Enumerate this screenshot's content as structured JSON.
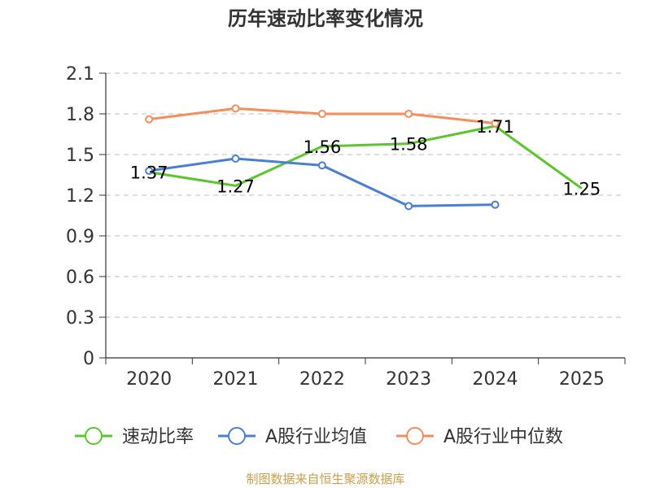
{
  "chart_data": {
    "type": "line",
    "title": "历年速动比率变化情况",
    "categories": [
      "2020",
      "2021",
      "2022",
      "2023",
      "2024",
      "2025"
    ],
    "yticks": [
      "0",
      "0.3",
      "0.6",
      "0.9",
      "1.2",
      "1.5",
      "1.8",
      "2.1"
    ],
    "ylim": [
      0,
      2.1
    ],
    "grid": true,
    "legend_position": "bottom",
    "series": [
      {
        "name": "速动比率",
        "color": "#5bc52c",
        "values": [
          1.37,
          1.27,
          1.56,
          1.58,
          1.71,
          1.25
        ],
        "labels": [
          "1.37",
          "1.27",
          "1.56",
          "1.58",
          "1.71",
          "1.25"
        ],
        "show_labels": true,
        "show_markers": false
      },
      {
        "name": "A股行业均值",
        "color": "#4a7fd6",
        "values": [
          1.38,
          1.47,
          1.42,
          1.12,
          1.13,
          null
        ],
        "show_labels": false,
        "show_markers": true
      },
      {
        "name": "A股行业中位数",
        "color": "#f58d5c",
        "values": [
          1.76,
          1.84,
          1.8,
          1.8,
          1.73,
          null
        ],
        "show_labels": false,
        "show_markers": true
      }
    ]
  },
  "footer": {
    "source": "制图数据来自恒生聚源数据库"
  }
}
